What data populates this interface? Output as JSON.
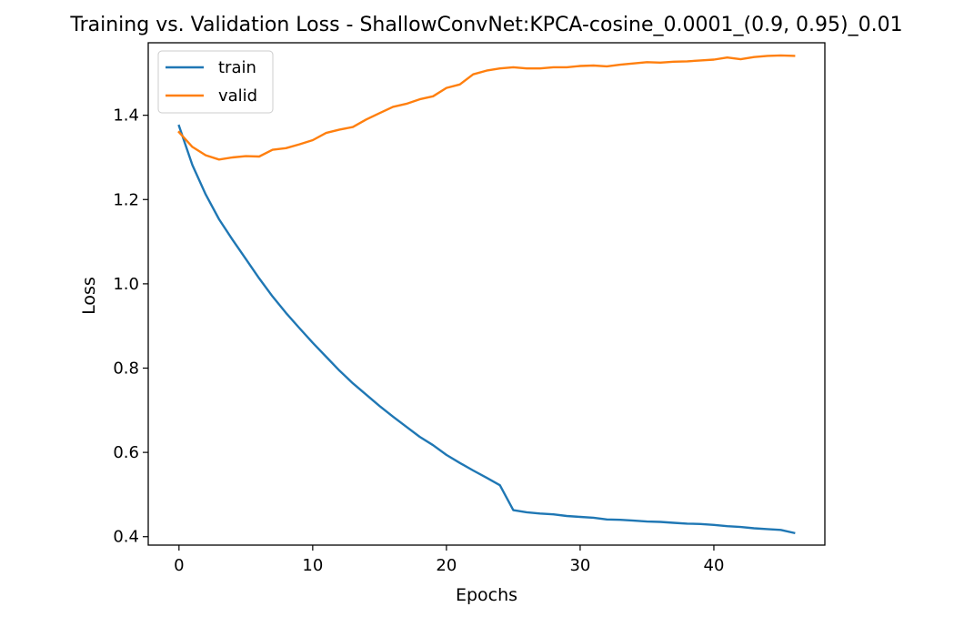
{
  "chart_data": {
    "type": "line",
    "title": "Training vs. Validation Loss - ShallowConvNet:KPCA-cosine_0.0001_(0.9, 0.95)_0.01",
    "xlabel": "Epochs",
    "ylabel": "Loss",
    "xlim": [
      -2.3,
      48.3
    ],
    "ylim": [
      0.38,
      1.572
    ],
    "xticks": [
      0,
      10,
      20,
      30,
      40
    ],
    "yticks": [
      0.4,
      0.6,
      0.8,
      1.0,
      1.2,
      1.4
    ],
    "ytick_labels": [
      "0.4",
      "0.6",
      "0.8",
      "1.0",
      "1.2",
      "1.4"
    ],
    "grid": false,
    "legend_position": "top-left",
    "x": [
      0,
      1,
      2,
      3,
      4,
      5,
      6,
      7,
      8,
      9,
      10,
      11,
      12,
      13,
      14,
      15,
      16,
      17,
      18,
      19,
      20,
      21,
      22,
      23,
      24,
      25,
      26,
      27,
      28,
      29,
      30,
      31,
      32,
      33,
      34,
      35,
      36,
      37,
      38,
      39,
      40,
      41,
      42,
      43,
      44,
      45,
      46
    ],
    "series": [
      {
        "name": "train",
        "color": "#1f77b4",
        "values": [
          1.375,
          1.282,
          1.212,
          1.153,
          1.105,
          1.059,
          1.013,
          0.97,
          0.931,
          0.895,
          0.86,
          0.827,
          0.794,
          0.764,
          0.737,
          0.71,
          0.685,
          0.661,
          0.637,
          0.617,
          0.594,
          0.575,
          0.557,
          0.54,
          0.522,
          0.463,
          0.458,
          0.455,
          0.453,
          0.449,
          0.447,
          0.445,
          0.441,
          0.44,
          0.438,
          0.436,
          0.435,
          0.433,
          0.431,
          0.43,
          0.428,
          0.425,
          0.423,
          0.42,
          0.418,
          0.416,
          0.409
        ]
      },
      {
        "name": "valid",
        "color": "#ff7f0e",
        "values": [
          1.36,
          1.325,
          1.305,
          1.295,
          1.3,
          1.303,
          1.302,
          1.318,
          1.322,
          1.331,
          1.341,
          1.358,
          1.366,
          1.372,
          1.39,
          1.405,
          1.42,
          1.427,
          1.438,
          1.445,
          1.465,
          1.473,
          1.497,
          1.506,
          1.511,
          1.514,
          1.511,
          1.511,
          1.514,
          1.514,
          1.517,
          1.518,
          1.516,
          1.52,
          1.523,
          1.526,
          1.525,
          1.527,
          1.528,
          1.53,
          1.532,
          1.537,
          1.533,
          1.538,
          1.541,
          1.542,
          1.541
        ]
      }
    ]
  }
}
